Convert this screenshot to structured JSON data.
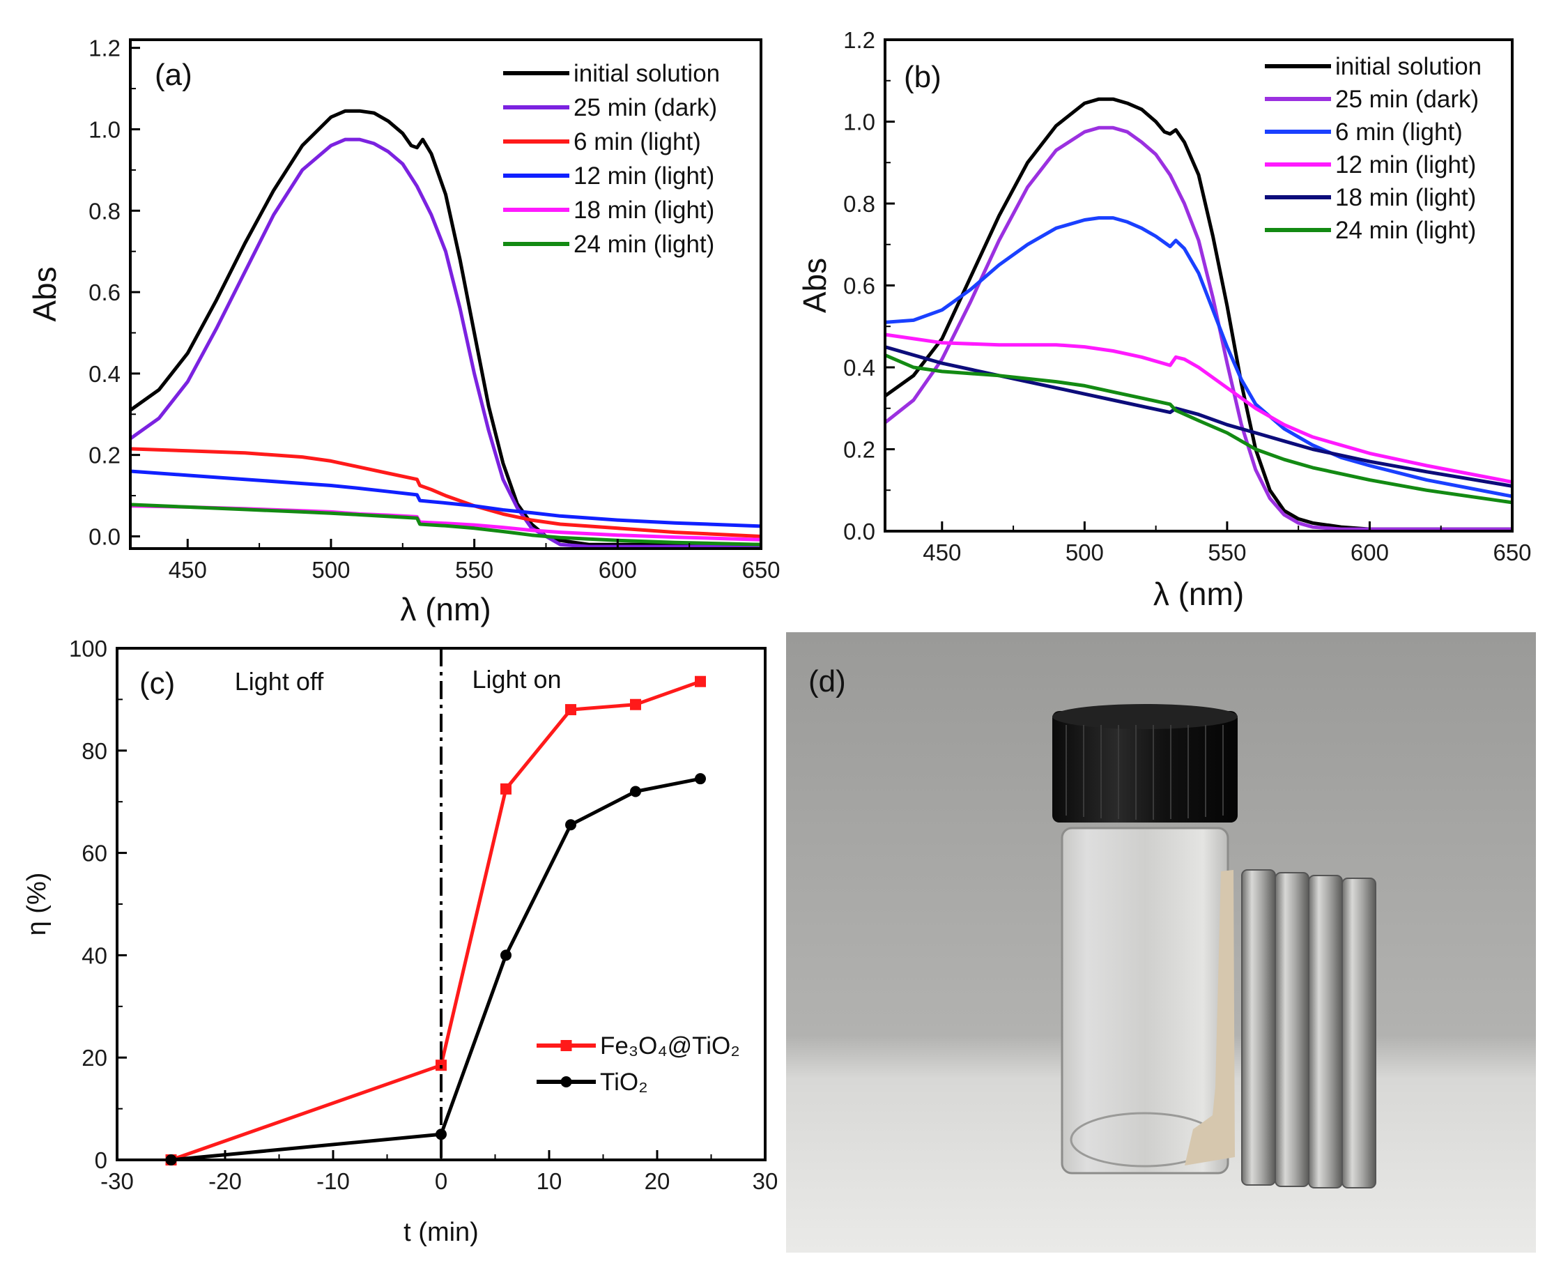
{
  "chart_data": [
    {
      "panel": "(a)",
      "type": "line",
      "xlabel": "λ (nm)",
      "ylabel": "Abs",
      "xlim": [
        430,
        650
      ],
      "ylim": [
        -0.03,
        1.22
      ],
      "xticks": [
        450,
        500,
        550,
        600,
        650
      ],
      "yticks": [
        0.0,
        0.2,
        0.4,
        0.6,
        0.8,
        1.0,
        1.2
      ],
      "series": [
        {
          "name": "initial solution",
          "color": "#000000",
          "x": [
            430,
            440,
            450,
            460,
            470,
            480,
            490,
            500,
            505,
            510,
            515,
            520,
            525,
            528,
            530,
            532,
            535,
            540,
            545,
            550,
            555,
            560,
            565,
            570,
            575,
            580,
            590,
            600,
            620,
            650
          ],
          "y": [
            0.31,
            0.36,
            0.45,
            0.58,
            0.72,
            0.85,
            0.96,
            1.03,
            1.045,
            1.045,
            1.04,
            1.02,
            0.99,
            0.96,
            0.955,
            0.975,
            0.94,
            0.84,
            0.68,
            0.5,
            0.32,
            0.18,
            0.08,
            0.03,
            0.0,
            -0.01,
            -0.02,
            -0.02,
            -0.02,
            -0.02
          ]
        },
        {
          "name": "25 min (dark)",
          "color": "#7b22e0",
          "x": [
            430,
            440,
            450,
            460,
            470,
            480,
            490,
            500,
            505,
            510,
            515,
            520,
            525,
            530,
            535,
            540,
            545,
            550,
            555,
            560,
            565,
            570,
            575,
            580,
            590,
            600,
            620,
            650
          ],
          "y": [
            0.24,
            0.29,
            0.38,
            0.51,
            0.65,
            0.79,
            0.9,
            0.96,
            0.975,
            0.975,
            0.965,
            0.945,
            0.915,
            0.86,
            0.79,
            0.7,
            0.56,
            0.4,
            0.26,
            0.14,
            0.07,
            0.02,
            0.0,
            -0.02,
            -0.025,
            -0.025,
            -0.025,
            -0.025
          ]
        },
        {
          "name": "6 min  (light)",
          "color": "#ff1a1a",
          "x": [
            430,
            450,
            470,
            490,
            500,
            510,
            520,
            530,
            531,
            535,
            540,
            550,
            560,
            570,
            580,
            600,
            620,
            650
          ],
          "y": [
            0.215,
            0.21,
            0.205,
            0.195,
            0.185,
            0.17,
            0.155,
            0.14,
            0.125,
            0.115,
            0.1,
            0.075,
            0.055,
            0.04,
            0.03,
            0.02,
            0.01,
            0.0
          ]
        },
        {
          "name": "12 min (light)",
          "color": "#1020ff",
          "x": [
            430,
            450,
            470,
            490,
            500,
            510,
            520,
            530,
            531,
            540,
            550,
            560,
            570,
            580,
            600,
            620,
            650
          ],
          "y": [
            0.16,
            0.15,
            0.14,
            0.13,
            0.125,
            0.118,
            0.11,
            0.102,
            0.088,
            0.082,
            0.075,
            0.065,
            0.058,
            0.05,
            0.04,
            0.033,
            0.025
          ]
        },
        {
          "name": "18 min (light)",
          "color": "#ff1aff",
          "x": [
            430,
            450,
            470,
            490,
            500,
            510,
            520,
            530,
            531,
            540,
            550,
            560,
            570,
            580,
            600,
            620,
            650
          ],
          "y": [
            0.075,
            0.072,
            0.068,
            0.063,
            0.06,
            0.055,
            0.052,
            0.048,
            0.035,
            0.032,
            0.028,
            0.022,
            0.015,
            0.01,
            0.003,
            -0.002,
            -0.008
          ]
        },
        {
          "name": "24 min (light)",
          "color": "#138a13",
          "x": [
            430,
            450,
            470,
            490,
            500,
            510,
            520,
            530,
            531,
            540,
            550,
            560,
            570,
            580,
            600,
            620,
            650
          ],
          "y": [
            0.078,
            0.072,
            0.066,
            0.06,
            0.057,
            0.053,
            0.049,
            0.045,
            0.03,
            0.026,
            0.02,
            0.012,
            0.003,
            -0.003,
            -0.01,
            -0.015,
            -0.02
          ]
        }
      ]
    },
    {
      "panel": "(b)",
      "type": "line",
      "xlabel": "λ (nm)",
      "ylabel": "Abs",
      "xlim": [
        430,
        650
      ],
      "ylim": [
        0.0,
        1.2
      ],
      "xticks": [
        450,
        500,
        550,
        600,
        650
      ],
      "yticks": [
        0.0,
        0.2,
        0.4,
        0.6,
        0.8,
        1.0,
        1.2
      ],
      "series": [
        {
          "name": "initial solution",
          "color": "#000000",
          "x": [
            430,
            440,
            450,
            460,
            470,
            480,
            490,
            500,
            505,
            510,
            515,
            520,
            525,
            528,
            530,
            532,
            535,
            540,
            545,
            550,
            555,
            560,
            565,
            570,
            575,
            580,
            590,
            600,
            620,
            650
          ],
          "y": [
            0.33,
            0.38,
            0.47,
            0.62,
            0.77,
            0.9,
            0.99,
            1.045,
            1.055,
            1.055,
            1.045,
            1.03,
            1.0,
            0.975,
            0.97,
            0.98,
            0.95,
            0.87,
            0.72,
            0.55,
            0.36,
            0.2,
            0.1,
            0.05,
            0.03,
            0.02,
            0.01,
            0.005,
            0.005,
            0.005
          ]
        },
        {
          "name": "25 min (dark)",
          "color": "#9b30e0",
          "x": [
            430,
            440,
            450,
            460,
            470,
            480,
            490,
            500,
            505,
            510,
            515,
            520,
            525,
            530,
            535,
            540,
            545,
            550,
            555,
            560,
            565,
            570,
            575,
            580,
            590,
            600,
            620,
            650
          ],
          "y": [
            0.265,
            0.32,
            0.42,
            0.56,
            0.71,
            0.84,
            0.93,
            0.975,
            0.985,
            0.985,
            0.975,
            0.95,
            0.92,
            0.87,
            0.8,
            0.71,
            0.57,
            0.41,
            0.26,
            0.15,
            0.08,
            0.04,
            0.02,
            0.01,
            0.005,
            0.005,
            0.005,
            0.005
          ]
        },
        {
          "name": " 6 min  (light)",
          "color": "#1a40ff",
          "x": [
            430,
            440,
            450,
            460,
            470,
            480,
            490,
            500,
            505,
            510,
            515,
            520,
            525,
            530,
            532,
            535,
            540,
            545,
            550,
            555,
            560,
            570,
            580,
            590,
            600,
            620,
            650
          ],
          "y": [
            0.51,
            0.515,
            0.54,
            0.59,
            0.65,
            0.7,
            0.74,
            0.76,
            0.765,
            0.765,
            0.755,
            0.74,
            0.72,
            0.695,
            0.71,
            0.69,
            0.63,
            0.54,
            0.45,
            0.37,
            0.31,
            0.25,
            0.21,
            0.18,
            0.16,
            0.125,
            0.085
          ]
        },
        {
          "name": "12 min (light)",
          "color": "#ff1aff",
          "x": [
            430,
            440,
            450,
            470,
            490,
            500,
            510,
            520,
            530,
            532,
            535,
            540,
            550,
            560,
            570,
            580,
            600,
            620,
            650
          ],
          "y": [
            0.48,
            0.47,
            0.46,
            0.455,
            0.455,
            0.45,
            0.44,
            0.425,
            0.405,
            0.425,
            0.42,
            0.4,
            0.35,
            0.3,
            0.26,
            0.23,
            0.19,
            0.16,
            0.12
          ]
        },
        {
          "name": "18 min (light)",
          "color": "#0c0c7a",
          "x": [
            430,
            450,
            470,
            490,
            500,
            510,
            520,
            530,
            532,
            540,
            550,
            560,
            570,
            580,
            600,
            620,
            650
          ],
          "y": [
            0.45,
            0.41,
            0.38,
            0.35,
            0.335,
            0.32,
            0.305,
            0.29,
            0.3,
            0.285,
            0.26,
            0.24,
            0.22,
            0.2,
            0.17,
            0.145,
            0.11
          ]
        },
        {
          "name": "24 min (light)",
          "color": "#138a13",
          "x": [
            430,
            440,
            450,
            470,
            490,
            500,
            510,
            520,
            530,
            532,
            540,
            550,
            560,
            570,
            580,
            600,
            620,
            650
          ],
          "y": [
            0.43,
            0.4,
            0.39,
            0.38,
            0.365,
            0.355,
            0.34,
            0.325,
            0.31,
            0.295,
            0.27,
            0.24,
            0.2,
            0.175,
            0.155,
            0.125,
            0.1,
            0.07
          ]
        }
      ]
    },
    {
      "panel": "(c)",
      "type": "line",
      "xlabel": "t (min)",
      "ylabel": "η (%)",
      "xlim": [
        -30,
        30
      ],
      "ylim": [
        0,
        100
      ],
      "xticks": [
        -30,
        -20,
        -10,
        0,
        10,
        20,
        30
      ],
      "yticks": [
        0,
        20,
        40,
        60,
        80,
        100
      ],
      "vline_x": 0,
      "annotations": [
        "Light off",
        "Light on"
      ],
      "series": [
        {
          "name": "Fe₃O₄@TiO₂",
          "color": "#ff1a1a",
          "marker": "square",
          "x": [
            -25,
            0,
            6,
            12,
            18,
            24
          ],
          "y": [
            0,
            18.5,
            72.5,
            88,
            89,
            93.5
          ]
        },
        {
          "name": "TiO₂",
          "color": "#000000",
          "marker": "circle",
          "x": [
            -25,
            0,
            6,
            12,
            18,
            24
          ],
          "y": [
            0,
            5,
            40,
            65.5,
            72,
            74.5
          ]
        }
      ]
    }
  ],
  "panel_d": {
    "label": "(d)"
  }
}
